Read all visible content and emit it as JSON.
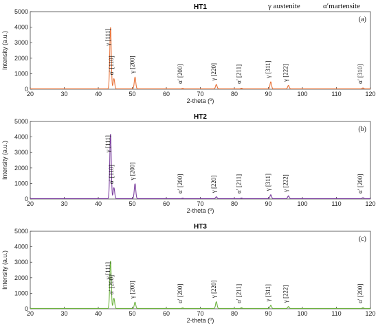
{
  "legend": {
    "gamma": "γ austenite",
    "alpha": "α′martensite"
  },
  "chart_data": [
    {
      "type": "line",
      "title": "HT1",
      "panel_label": "(a)",
      "xlabel": "2-theta (º)",
      "ylabel": "Intensity (a.u.)",
      "xlim": [
        20,
        120
      ],
      "ylim": [
        0,
        5000
      ],
      "xticks": [
        20,
        30,
        40,
        50,
        60,
        70,
        80,
        90,
        100,
        110,
        120
      ],
      "yticks": [
        0,
        1000,
        2000,
        3000,
        4000,
        5000
      ],
      "color": "#e8733a",
      "peaks": [
        {
          "x": 43.6,
          "y": 3950,
          "label": "γ [111]"
        },
        {
          "x": 44.6,
          "y": 650,
          "label": "α′ [110]"
        },
        {
          "x": 50.8,
          "y": 750,
          "label": "γ [200]"
        },
        {
          "x": 64.8,
          "y": 30,
          "label": "α′ [200]"
        },
        {
          "x": 74.7,
          "y": 280,
          "label": "γ [220]"
        },
        {
          "x": 82.1,
          "y": 40,
          "label": "α′ [211]"
        },
        {
          "x": 90.7,
          "y": 450,
          "label": "γ [311]"
        },
        {
          "x": 95.9,
          "y": 220,
          "label": "γ [222]"
        },
        {
          "x": 117.8,
          "y": 60,
          "label": "α′ [310]"
        }
      ]
    },
    {
      "type": "line",
      "title": "HT2",
      "panel_label": "(b)",
      "xlabel": "2-theta (º)",
      "ylabel": "Intensity (a.u.)",
      "xlim": [
        20,
        120
      ],
      "ylim": [
        0,
        5000
      ],
      "xticks": [
        20,
        30,
        40,
        50,
        60,
        70,
        80,
        90,
        100,
        110,
        120
      ],
      "yticks": [
        0,
        1000,
        2000,
        3000,
        4000,
        5000
      ],
      "color": "#7b3f9e",
      "peaks": [
        {
          "x": 43.6,
          "y": 4150,
          "label": "γ [111]"
        },
        {
          "x": 44.6,
          "y": 700,
          "label": "α′ [110]"
        },
        {
          "x": 50.8,
          "y": 950,
          "label": "γ [200]"
        },
        {
          "x": 64.8,
          "y": 30,
          "label": "α′ [200]"
        },
        {
          "x": 74.7,
          "y": 120,
          "label": "γ [220]"
        },
        {
          "x": 82.1,
          "y": 40,
          "label": "α′ [211]"
        },
        {
          "x": 90.7,
          "y": 250,
          "label": "γ [311]"
        },
        {
          "x": 95.9,
          "y": 180,
          "label": "γ [222]"
        },
        {
          "x": 117.8,
          "y": 60,
          "label": "α′ [200]"
        }
      ]
    },
    {
      "type": "line",
      "title": "HT3",
      "panel_label": "(c)",
      "xlabel": "2-theta (º)",
      "ylabel": "Intensity (a.u.)",
      "xlim": [
        20,
        120
      ],
      "ylim": [
        0,
        5000
      ],
      "xticks": [
        20,
        30,
        40,
        50,
        60,
        70,
        80,
        90,
        100,
        110,
        120
      ],
      "yticks": [
        0,
        1000,
        2000,
        3000,
        4000,
        5000
      ],
      "color": "#6db33f",
      "peaks": [
        {
          "x": 43.6,
          "y": 3050,
          "label": "γ [111]"
        },
        {
          "x": 44.6,
          "y": 650,
          "label": "α′ [200]"
        },
        {
          "x": 50.8,
          "y": 400,
          "label": "γ [200]"
        },
        {
          "x": 64.8,
          "y": 30,
          "label": "α′ [200]"
        },
        {
          "x": 74.7,
          "y": 430,
          "label": "γ [220]"
        },
        {
          "x": 82.1,
          "y": 40,
          "label": "α′ [211]"
        },
        {
          "x": 90.7,
          "y": 200,
          "label": "γ [311]"
        },
        {
          "x": 95.9,
          "y": 120,
          "label": "γ [222]"
        },
        {
          "x": 117.8,
          "y": 40,
          "label": "α′ [200]"
        }
      ]
    }
  ]
}
